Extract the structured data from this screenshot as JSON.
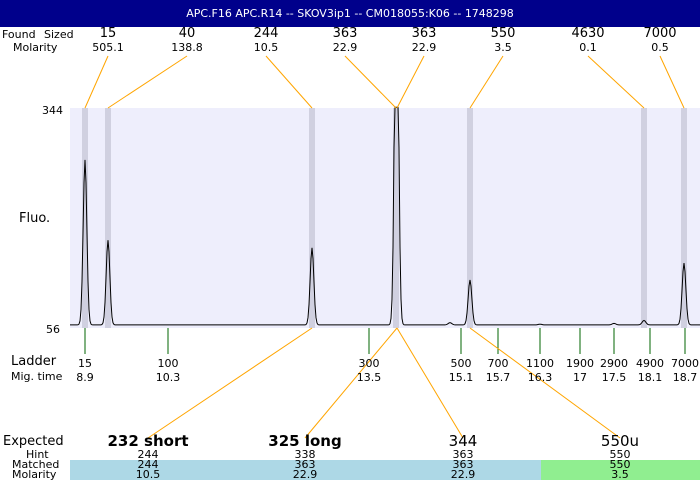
{
  "title": "APC.F16  APC.R14 -- SKOV3ip1 -- CM018055:K06 -- 1748298",
  "labels": {
    "found": "Found",
    "sized": "Sized",
    "molarity": "Molarity",
    "fluo": "Fluo.",
    "ladder": "Ladder",
    "mig_time": "Mig. time",
    "expected": "Expected",
    "hint": "Hint",
    "matched": "Matched",
    "molarity2": "Molarity"
  },
  "colors": {
    "header": "#00008b",
    "plot_bg": "#eeeefc",
    "lane": "#d0d0e0",
    "connector": "#ffa500",
    "ladder_tick": "#006400",
    "matched_blue": "#add8e6",
    "matched_green": "#90ee90"
  },
  "chart_data": {
    "type": "line",
    "ylabel": "Fluo.",
    "yticks": [
      56,
      344
    ],
    "ylim": [
      56,
      344
    ],
    "peaks_found": [
      {
        "size": "15",
        "molarity": "505.1",
        "height": 276
      },
      {
        "size": "40",
        "molarity": "138.8",
        "height": 171
      },
      {
        "size": "244",
        "molarity": "10.5",
        "height": 161
      },
      {
        "size": "363",
        "molarity": "22.9",
        "height": 344
      },
      {
        "size": "363",
        "molarity": "22.9",
        "height": 344
      },
      {
        "size": "550",
        "molarity": "3.5",
        "height": 119
      },
      {
        "size": "4630",
        "molarity": "0.1",
        "height": 66
      },
      {
        "size": "7000",
        "molarity": "0.5",
        "height": 141
      }
    ],
    "ladder": [
      {
        "size": "15",
        "time": "8.9"
      },
      {
        "size": "100",
        "time": "10.3"
      },
      {
        "size": "300",
        "time": "13.5"
      },
      {
        "size": "500",
        "time": "15.1"
      },
      {
        "size": "700",
        "time": "15.7"
      },
      {
        "size": "1100",
        "time": "16.3"
      },
      {
        "size": "1900",
        "time": "17"
      },
      {
        "size": "2900",
        "time": "17.5"
      },
      {
        "size": "4900",
        "time": "18.1"
      },
      {
        "size": "7000",
        "time": "18.7"
      }
    ],
    "expected": [
      {
        "label": "232 short",
        "hint": "244",
        "matched": "244",
        "molarity": "10.5",
        "status": "blue"
      },
      {
        "label": "325 long",
        "hint": "338",
        "matched": "363",
        "molarity": "22.9",
        "status": "blue"
      },
      {
        "label": "344",
        "hint": "363",
        "matched": "363",
        "molarity": "22.9",
        "status": "blue"
      },
      {
        "label": "550u",
        "hint": "550",
        "matched": "550",
        "molarity": "3.5",
        "status": "green"
      }
    ]
  }
}
